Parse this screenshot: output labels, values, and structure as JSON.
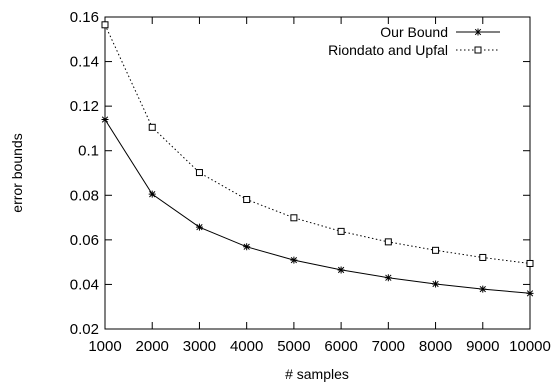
{
  "chart_data": {
    "type": "line",
    "title": "",
    "xlabel": "# samples",
    "ylabel": "error bounds",
    "x": [
      1000,
      2000,
      3000,
      4000,
      5000,
      6000,
      7000,
      8000,
      9000,
      10000
    ],
    "xlim": [
      1000,
      10000
    ],
    "ylim": [
      0.02,
      0.16
    ],
    "xticks": [
      "1000",
      "2000",
      "3000",
      "4000",
      "5000",
      "6000",
      "7000",
      "8000",
      "9000",
      "10000"
    ],
    "yticks": [
      "0.02",
      "0.04",
      "0.06",
      "0.08",
      "0.1",
      "0.12",
      "0.14",
      "0.16"
    ],
    "grid": false,
    "legend_position": "top-right",
    "series": [
      {
        "name": "Our Bound",
        "values": [
          0.114,
          0.0805,
          0.0657,
          0.0569,
          0.0509,
          0.0465,
          0.043,
          0.0402,
          0.0379,
          0.036
        ],
        "line_style": "solid",
        "marker": "asterisk",
        "color": "#000000"
      },
      {
        "name": "Riondato and Upfal",
        "values": [
          0.1565,
          0.1105,
          0.0902,
          0.0781,
          0.0699,
          0.0638,
          0.0591,
          0.0553,
          0.0521,
          0.0494
        ],
        "line_style": "dotted",
        "marker": "open-square",
        "color": "#000000"
      }
    ]
  }
}
